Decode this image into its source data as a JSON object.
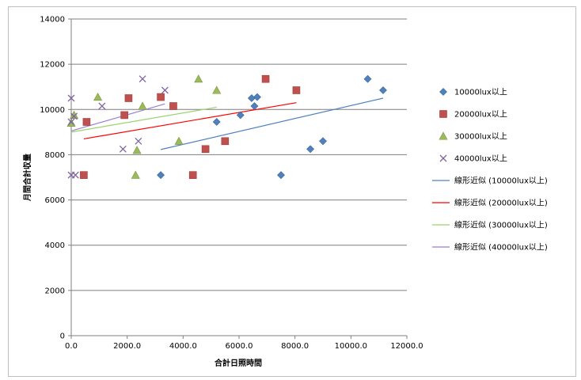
{
  "chart_data": {
    "type": "scatter",
    "xlabel": "合計日照時間",
    "ylabel": "月間合計収量",
    "xlim": [
      0,
      12000
    ],
    "ylim": [
      0,
      14000
    ],
    "xticks": [
      "0.0",
      "2000.0",
      "4000.0",
      "6000.0",
      "8000.0",
      "10000.0",
      "12000.0"
    ],
    "yticks": [
      "0",
      "2000",
      "4000",
      "6000",
      "8000",
      "10000",
      "12000",
      "14000"
    ],
    "grid": true,
    "legend_position": "right",
    "series": [
      {
        "name": "10000lux以上",
        "marker": "diamond",
        "color": "#4f81bd",
        "points": [
          [
            3200,
            7100
          ],
          [
            5200,
            9450
          ],
          [
            6050,
            9750
          ],
          [
            6450,
            10500
          ],
          [
            6550,
            10150
          ],
          [
            6650,
            10550
          ],
          [
            7500,
            7100
          ],
          [
            8550,
            8250
          ],
          [
            9000,
            8600
          ],
          [
            10600,
            11350
          ],
          [
            11150,
            10850
          ]
        ]
      },
      {
        "name": "20000lux以上",
        "marker": "square",
        "color": "#c0504d",
        "points": [
          [
            450,
            7100
          ],
          [
            550,
            9450
          ],
          [
            1900,
            9750
          ],
          [
            2050,
            10500
          ],
          [
            3200,
            10550
          ],
          [
            3650,
            10150
          ],
          [
            4350,
            7100
          ],
          [
            4800,
            8250
          ],
          [
            5500,
            8600
          ],
          [
            6950,
            11350
          ],
          [
            8050,
            10850
          ]
        ]
      },
      {
        "name": "30000lux以上",
        "marker": "triangle",
        "color": "#9bbb59",
        "points": [
          [
            0,
            9400
          ],
          [
            100,
            9750
          ],
          [
            950,
            10550
          ],
          [
            2300,
            7100
          ],
          [
            2350,
            8200
          ],
          [
            2550,
            10150
          ],
          [
            3850,
            8600
          ],
          [
            4550,
            11350
          ],
          [
            5200,
            10850
          ]
        ]
      },
      {
        "name": "40000lux以上",
        "marker": "x",
        "color": "#8064a2",
        "points": [
          [
            0,
            7100
          ],
          [
            0,
            9450
          ],
          [
            0,
            10500
          ],
          [
            100,
            9700
          ],
          [
            150,
            7100
          ],
          [
            1100,
            10150
          ],
          [
            1850,
            8250
          ],
          [
            2400,
            8600
          ],
          [
            2550,
            11350
          ],
          [
            3350,
            10850
          ]
        ]
      }
    ],
    "trendlines": [
      {
        "name": "線形近似 (10000lux以上)",
        "color": "#4f81bd",
        "from": [
          3200,
          8230
        ],
        "to": [
          11150,
          10500
        ]
      },
      {
        "name": "線形近似 (20000lux以上)",
        "color": "#ff0000",
        "from": [
          450,
          8700
        ],
        "to": [
          8050,
          10300
        ]
      },
      {
        "name": "線形近似 (30000lux以上)",
        "color": "#9bd36b",
        "from": [
          0,
          9000
        ],
        "to": [
          5200,
          10100
        ]
      },
      {
        "name": "線形近似 (40000lux以上)",
        "color": "#9b7fd4",
        "from": [
          0,
          9050
        ],
        "to": [
          3350,
          10250
        ]
      }
    ]
  }
}
